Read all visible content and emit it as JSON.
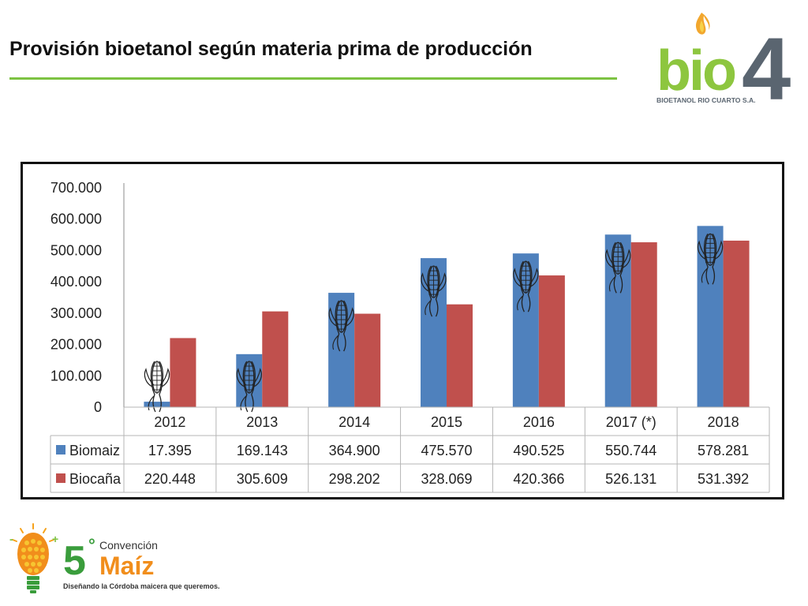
{
  "slide": {
    "title": "Provisión bioetanol según materia prima de producción",
    "accent_color": "#7dc242"
  },
  "logos": {
    "bio4": {
      "wordmark_bio": "bio",
      "wordmark_num": "4",
      "tagline": "BIOETANOL RIO CUARTO S.A."
    },
    "convencion": {
      "number": "5",
      "degree": "°",
      "word1": "Convención",
      "word2": "Maíz",
      "tagline": "Diseñando la Córdoba maicera que queremos."
    }
  },
  "chart_data": {
    "type": "bar",
    "categories": [
      "2012",
      "2013",
      "2014",
      "2015",
      "2016",
      "2017 (*)",
      "2018"
    ],
    "series": [
      {
        "name": "Biomaiz",
        "color": "#4f81bd",
        "values": [
          17395,
          169143,
          364900,
          475570,
          490525,
          550744,
          578281
        ],
        "labels": [
          "17.395",
          "169.143",
          "364.900",
          "475.570",
          "490.525",
          "550.744",
          "578.281"
        ]
      },
      {
        "name": "Biocaña",
        "color": "#c0504d",
        "values": [
          220448,
          305609,
          298202,
          328069,
          420366,
          526131,
          531392
        ],
        "labels": [
          "220.448",
          "305.609",
          "298.202",
          "328.069",
          "420.366",
          "526.131",
          "531.392"
        ]
      }
    ],
    "ylim": [
      0,
      700000
    ],
    "ytick_labels": [
      "0",
      "100.000",
      "200.000",
      "300.000",
      "400.000",
      "500.000",
      "600.000",
      "700.000"
    ],
    "legend": "data-table",
    "grid": false,
    "decoration_icon": "corn-cob-icon"
  }
}
